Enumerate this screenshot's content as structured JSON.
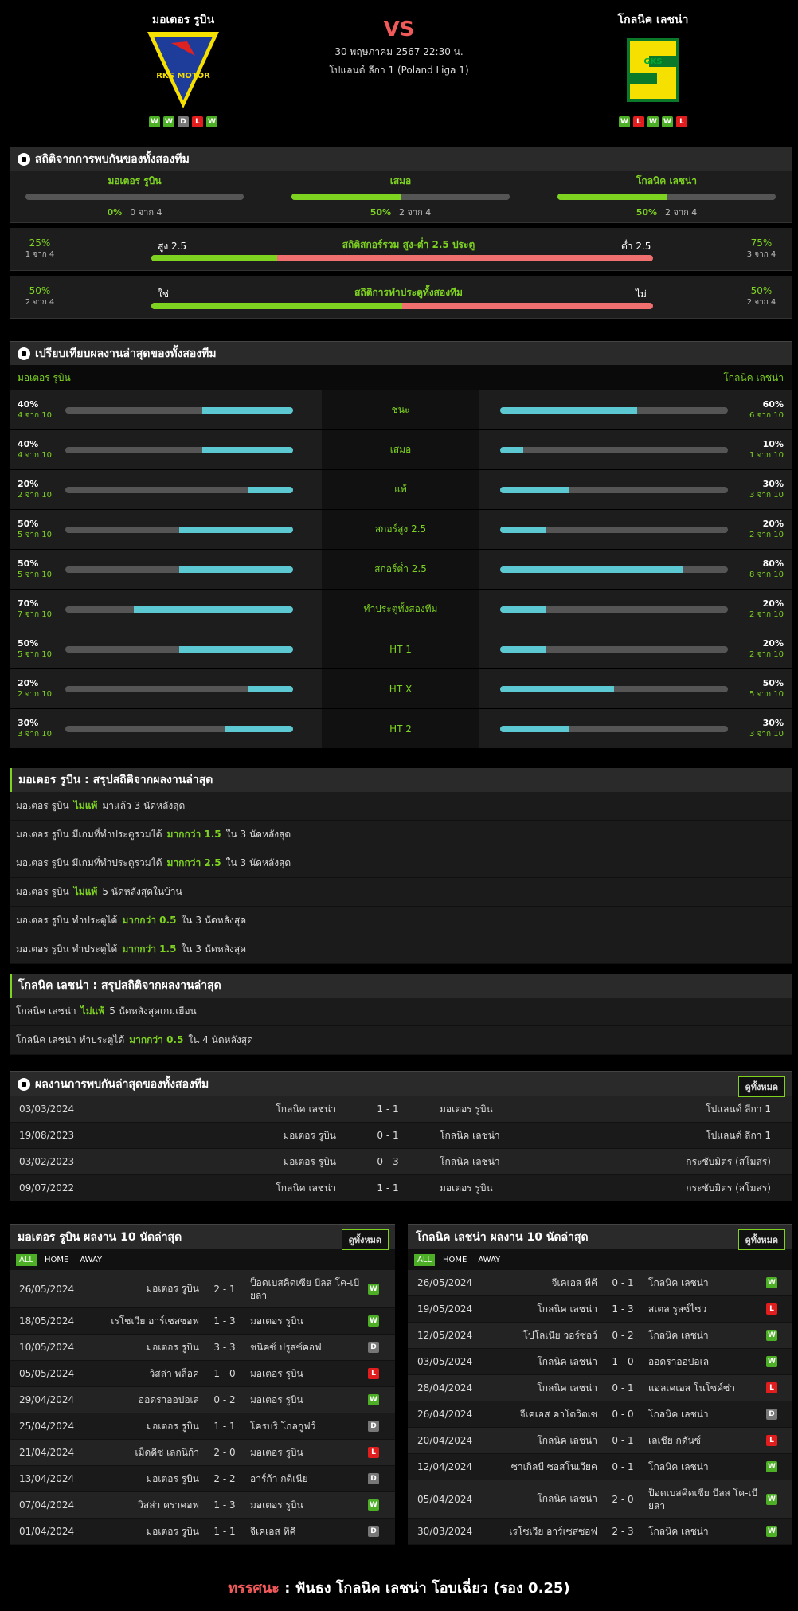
{
  "match": {
    "vs": "VS",
    "datetime": "30 พฤษภาคม 2567 22:30 น.",
    "league": "โปแลนด์ ลีกา 1 (Poland Liga 1)"
  },
  "home": {
    "name": "มอเตอร รูบิน",
    "form": [
      "W",
      "W",
      "D",
      "L",
      "W"
    ],
    "logo_text": "RKS MOTOR"
  },
  "away": {
    "name": "โกลนิค เลชน่า",
    "form": [
      "W",
      "L",
      "W",
      "W",
      "L"
    ],
    "logo_text": "GKS"
  },
  "h2h_stats": {
    "title": "สถิติจากการพบกันของทั้งสองทีม",
    "cols": [
      {
        "label": "มอเตอร รูบิน",
        "pct": "0%",
        "count": "0 จาก 4",
        "fill": 0
      },
      {
        "label": "เสมอ",
        "pct": "50%",
        "count": "2 จาก 4",
        "fill": 50
      },
      {
        "label": "โกลนิค เลชน่า",
        "pct": "50%",
        "count": "2 จาก 4",
        "fill": 50
      }
    ],
    "ou": {
      "title": "สถิติสกอร์รวม สูง-ต่ำ 2.5 ประตู",
      "left_pct": "25%",
      "left_count": "1 จาก 4",
      "left_label": "สูง 2.5",
      "right_label": "ต่ำ 2.5",
      "right_pct": "75%",
      "right_count": "3 จาก 4",
      "fill": 25
    },
    "btts": {
      "title": "สถิติการทำประตูทั้งสองทีม",
      "left_pct": "50%",
      "left_count": "2 จาก 4",
      "left_label": "ใช่",
      "right_label": "ไม่",
      "right_pct": "50%",
      "right_count": "2 จาก 4",
      "fill": 50
    }
  },
  "compare": {
    "title": "เปรียบเทียบผลงานล่าสุดของทั้งสองทีม",
    "home": "มอเตอร รูบิน",
    "away": "โกลนิค เลชน่า",
    "rows": [
      {
        "label": "ชนะ",
        "hp": "40%",
        "hc": "4 จาก 10",
        "hv": 40,
        "ap": "60%",
        "ac": "6 จาก 10",
        "av": 60
      },
      {
        "label": "เสมอ",
        "hp": "40%",
        "hc": "4 จาก 10",
        "hv": 40,
        "ap": "10%",
        "ac": "1 จาก 10",
        "av": 10
      },
      {
        "label": "แพ้",
        "hp": "20%",
        "hc": "2 จาก 10",
        "hv": 20,
        "ap": "30%",
        "ac": "3 จาก 10",
        "av": 30
      },
      {
        "label": "สกอร์สูง 2.5",
        "hp": "50%",
        "hc": "5 จาก 10",
        "hv": 50,
        "ap": "20%",
        "ac": "2 จาก 10",
        "av": 20
      },
      {
        "label": "สกอร์ต่ำ 2.5",
        "hp": "50%",
        "hc": "5 จาก 10",
        "hv": 50,
        "ap": "80%",
        "ac": "8 จาก 10",
        "av": 80
      },
      {
        "label": "ทำประตูทั้งสองทีม",
        "hp": "70%",
        "hc": "7 จาก 10",
        "hv": 70,
        "ap": "20%",
        "ac": "2 จาก 10",
        "av": 20
      },
      {
        "label": "HT 1",
        "hp": "50%",
        "hc": "5 จาก 10",
        "hv": 50,
        "ap": "20%",
        "ac": "2 จาก 10",
        "av": 20
      },
      {
        "label": "HT X",
        "hp": "20%",
        "hc": "2 จาก 10",
        "hv": 20,
        "ap": "50%",
        "ac": "5 จาก 10",
        "av": 50
      },
      {
        "label": "HT 2",
        "hp": "30%",
        "hc": "3 จาก 10",
        "hv": 30,
        "ap": "30%",
        "ac": "3 จาก 10",
        "av": 30
      }
    ]
  },
  "home_summary": {
    "title": "มอเตอร รูบิน : สรุปสถิติจากผลงานล่าสุด",
    "rows": [
      [
        "มอเตอร รูบิน",
        "ไม่แพ้",
        "มาแล้ว 3 นัดหลังสุด"
      ],
      [
        "มอเตอร รูบิน  มีเกมที่ทำประตูรวมได้",
        "มากกว่า  1.5",
        "ใน 3 นัดหลังสุด"
      ],
      [
        "มอเตอร รูบิน  มีเกมที่ทำประตูรวมได้",
        "มากกว่า  2.5",
        "ใน 3 นัดหลังสุด"
      ],
      [
        "มอเตอร รูบิน",
        "ไม่แพ้",
        "5  นัดหลังสุดในบ้าน"
      ],
      [
        "มอเตอร รูบิน  ทำประตูได้",
        "มากกว่า  0.5",
        "ใน 3 นัดหลังสุด"
      ],
      [
        "มอเตอร รูบิน  ทำประตูได้",
        "มากกว่า  1.5",
        "ใน 3 นัดหลังสุด"
      ]
    ]
  },
  "away_summary": {
    "title": "โกลนิค เลชน่า : สรุปสถิติจากผลงานล่าสุด",
    "rows": [
      [
        "โกลนิค เลชน่า",
        "ไม่แพ้",
        "5  นัดหลังสุดเกมเยือน"
      ],
      [
        "โกลนิค เลชน่า  ทำประตูได้",
        "มากกว่า  0.5",
        "ใน 4 นัดหลังสุด"
      ]
    ]
  },
  "h2h": {
    "title": "ผลงานการพบกันล่าสุดของทั้งสองทีม",
    "btn": "ดูทั้งหมด",
    "rows": [
      {
        "date": "03/03/2024",
        "home": "โกลนิค เลชน่า",
        "score": "1 - 1",
        "away": "มอเตอร รูบิน",
        "comp": "โปแลนด์ ลีกา 1"
      },
      {
        "date": "19/08/2023",
        "home": "มอเตอร รูบิน",
        "score": "0 - 1",
        "away": "โกลนิค เลชน่า",
        "comp": "โปแลนด์ ลีกา 1"
      },
      {
        "date": "03/02/2023",
        "home": "มอเตอร รูบิน",
        "score": "0 - 3",
        "away": "โกลนิค เลชน่า",
        "comp": "กระชับมิตร (สโมสร)"
      },
      {
        "date": "09/07/2022",
        "home": "โกลนิค เลชน่า",
        "score": "1 - 1",
        "away": "มอเตอร รูบิน",
        "comp": "กระชับมิตร (สโมสร)"
      }
    ]
  },
  "last10": {
    "btn": "ดูทั้งหมด",
    "filters": [
      "ALL",
      "HOME",
      "AWAY"
    ],
    "home_title": "มอเตอร รูบิน ผลงาน 10 นัดล่าสุด",
    "away_title": "โกลนิค เลชน่า ผลงาน 10 นัดล่าสุด",
    "home": [
      {
        "date": "26/05/2024",
        "home": "มอเตอร รูบิน",
        "score": "2 - 1",
        "away": "ป็อดเบสคิดเซีย บีลส โค-เบียลา",
        "res": "W",
        "tall": true
      },
      {
        "date": "18/05/2024",
        "home": "เรโซเวีย อาร์เซสซอฟ",
        "score": "1 - 3",
        "away": "มอเตอร รูบิน",
        "res": "W"
      },
      {
        "date": "10/05/2024",
        "home": "มอเตอร รูบิน",
        "score": "3 - 3",
        "away": "ชนิคซ์ ปรูสซ์คอฟ",
        "res": "D"
      },
      {
        "date": "05/05/2024",
        "home": "วิสล่า พล็อค",
        "score": "1 - 0",
        "away": "มอเตอร รูบิน",
        "res": "L"
      },
      {
        "date": "29/04/2024",
        "home": "ออดราออปอเล",
        "score": "0 - 2",
        "away": "มอเตอร รูบิน",
        "res": "W"
      },
      {
        "date": "25/04/2024",
        "home": "มอเตอร รูบิน",
        "score": "1 - 1",
        "away": "โครบริ โกลกูฟว์",
        "res": "D"
      },
      {
        "date": "21/04/2024",
        "home": "เม็ดดีซ เลกนิก้า",
        "score": "2 - 0",
        "away": "มอเตอร รูบิน",
        "res": "L"
      },
      {
        "date": "13/04/2024",
        "home": "มอเตอร รูบิน",
        "score": "2 - 2",
        "away": "อาร์ก้า กดิเนีย",
        "res": "D"
      },
      {
        "date": "07/04/2024",
        "home": "วิสล่า คราคอฟ",
        "score": "1 - 3",
        "away": "มอเตอร รูบิน",
        "res": "W"
      },
      {
        "date": "01/04/2024",
        "home": "มอเตอร รูบิน",
        "score": "1 - 1",
        "away": "จีเคเอส ทีคี",
        "res": "D"
      }
    ],
    "away": [
      {
        "date": "26/05/2024",
        "home": "จีเคเอส ทีคี",
        "score": "0 - 1",
        "away": "โกลนิค เลชน่า",
        "res": "W"
      },
      {
        "date": "19/05/2024",
        "home": "โกลนิค เลชน่า",
        "score": "1 - 3",
        "away": "สเตล รูสซ์ไซว",
        "res": "L"
      },
      {
        "date": "12/05/2024",
        "home": "โปโลเนีย วอร์ซอว์",
        "score": "0 - 2",
        "away": "โกลนิค เลชน่า",
        "res": "W"
      },
      {
        "date": "03/05/2024",
        "home": "โกลนิค เลชน่า",
        "score": "1 - 0",
        "away": "ออดราออปอเล",
        "res": "W"
      },
      {
        "date": "28/04/2024",
        "home": "โกลนิค เลชน่า",
        "score": "0 - 1",
        "away": "แอลเคเอส โนโซค์ซ่า",
        "res": "L"
      },
      {
        "date": "26/04/2024",
        "home": "จีเคเอส คาโตวิตเซ",
        "score": "0 - 0",
        "away": "โกลนิค เลชน่า",
        "res": "D"
      },
      {
        "date": "20/04/2024",
        "home": "โกลนิค เลชน่า",
        "score": "0 - 1",
        "away": "เลเชีย กดันซ์",
        "res": "L"
      },
      {
        "date": "12/04/2024",
        "home": "ซาเกิลบี ซอสโนเวียค",
        "score": "0 - 1",
        "away": "โกลนิค เลชน่า",
        "res": "W"
      },
      {
        "date": "05/04/2024",
        "home": "โกลนิค เลชน่า",
        "score": "2 - 0",
        "away": "ป็อดเบสคิดเซีย บีลส โค-เบียลา",
        "res": "W",
        "tall": true
      },
      {
        "date": "30/03/2024",
        "home": "เรโซเวีย อาร์เซสซอฟ",
        "score": "2 - 3",
        "away": "โกลนิค เลชน่า",
        "res": "W"
      }
    ]
  },
  "verdict": {
    "label": "ทรรศนะ",
    "sep": ":",
    "text": "ฟันธง โกลนิค เลชน่า โอบเฉี่ยว (รอง 0.25)"
  },
  "colors": {
    "green": "#7ed321",
    "teal": "#5bc8d2",
    "red": "#f07070"
  }
}
